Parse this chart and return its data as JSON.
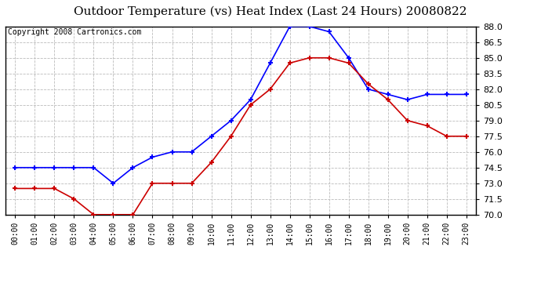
{
  "title": "Outdoor Temperature (vs) Heat Index (Last 24 Hours) 20080822",
  "copyright": "Copyright 2008 Cartronics.com",
  "hours": [
    0,
    1,
    2,
    3,
    4,
    5,
    6,
    7,
    8,
    9,
    10,
    11,
    12,
    13,
    14,
    15,
    16,
    17,
    18,
    19,
    20,
    21,
    22,
    23
  ],
  "xtick_labels": [
    "00:00",
    "01:00",
    "02:00",
    "03:00",
    "04:00",
    "05:00",
    "06:00",
    "07:00",
    "08:00",
    "09:00",
    "10:00",
    "11:00",
    "12:00",
    "13:00",
    "14:00",
    "15:00",
    "16:00",
    "17:00",
    "18:00",
    "19:00",
    "20:00",
    "21:00",
    "22:00",
    "23:00"
  ],
  "blue_temp": [
    74.5,
    74.5,
    74.5,
    74.5,
    74.5,
    73.0,
    74.5,
    75.5,
    76.0,
    76.0,
    77.5,
    79.0,
    81.0,
    84.5,
    88.0,
    88.0,
    87.5,
    85.0,
    82.0,
    81.5,
    81.0,
    81.5,
    81.5,
    81.5
  ],
  "red_heat": [
    72.5,
    72.5,
    72.5,
    71.5,
    70.0,
    70.0,
    70.0,
    73.0,
    73.0,
    73.0,
    75.0,
    77.5,
    80.5,
    82.0,
    84.5,
    85.0,
    85.0,
    84.5,
    82.5,
    81.0,
    79.0,
    78.5,
    77.5,
    77.5
  ],
  "blue_color": "#0000ff",
  "red_color": "#cc0000",
  "ylim_min": 70.0,
  "ylim_max": 88.0,
  "ytick_vals": [
    70.0,
    71.5,
    73.0,
    74.5,
    76.0,
    77.5,
    79.0,
    80.5,
    82.0,
    83.5,
    85.0,
    86.5,
    88.0
  ],
  "background_color": "#ffffff",
  "plot_bg_color": "#ffffff",
  "grid_color": "#bbbbbb",
  "title_fontsize": 11,
  "copyright_fontsize": 7
}
